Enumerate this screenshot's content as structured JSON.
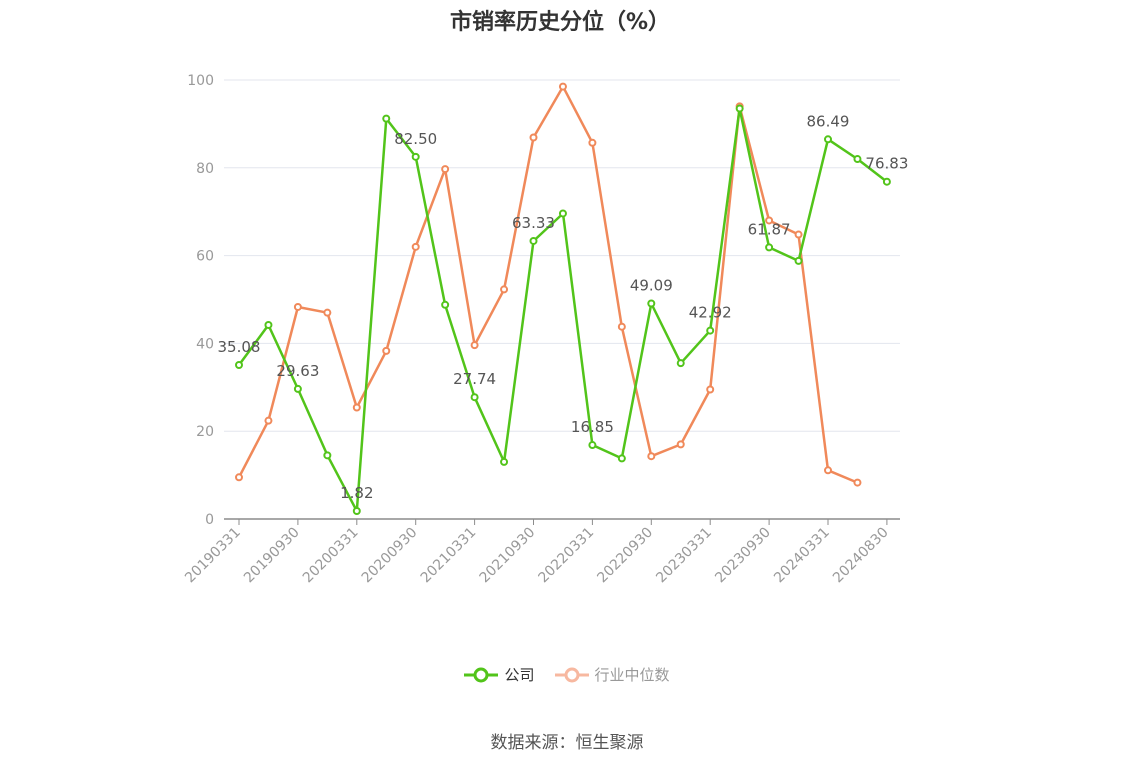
{
  "title": "市销率历史分位（%）",
  "source": "数据来源：恒生聚源",
  "legend": {
    "company": "公司",
    "industry": "行业中位数"
  },
  "colors": {
    "company": "#52c41a",
    "industry": "#f0895a",
    "industry_legend": "#f7b8a0",
    "grid": "#e3e6ee",
    "axis": "#8c8c8c",
    "tick_text": "#999999",
    "label_text": "#555555"
  },
  "chart_data": {
    "type": "line",
    "title": "市销率历史分位（%）",
    "ylim": [
      0,
      100
    ],
    "yticks": [
      0,
      20,
      40,
      60,
      80,
      100
    ],
    "grid": true,
    "legend_position": "bottom",
    "x_tick_labels": [
      "20190331",
      "20190930",
      "20200331",
      "20200930",
      "20210331",
      "20210930",
      "20220331",
      "20220930",
      "20230331",
      "20230930",
      "20240331",
      "20240830"
    ],
    "x": [
      "20190331",
      "20190630",
      "20190930",
      "20191231",
      "20200331",
      "20200630",
      "20200930",
      "20201231",
      "20210331",
      "20210630",
      "20210930",
      "20211231",
      "20220331",
      "20220630",
      "20220930",
      "20221231",
      "20230331",
      "20230630",
      "20230930",
      "20231231",
      "20240331",
      "20240630",
      "20240830"
    ],
    "series": [
      {
        "name": "公司",
        "values": [
          35.08,
          44.2,
          29.63,
          14.5,
          1.82,
          91.2,
          82.5,
          48.8,
          27.74,
          13.0,
          63.33,
          69.6,
          16.85,
          13.8,
          49.09,
          35.5,
          42.92,
          93.5,
          61.87,
          58.8,
          86.49,
          82.0,
          76.83
        ],
        "labels": {
          "0": "35.08",
          "2": "29.63",
          "4": "1.82",
          "6": "82.50",
          "8": "27.74",
          "10": "63.33",
          "12": "16.85",
          "14": "49.09",
          "16": "42.92",
          "18": "61.87",
          "20": "86.49",
          "22": "76.83"
        }
      },
      {
        "name": "行业中位数",
        "values": [
          9.5,
          22.4,
          48.3,
          47.0,
          25.4,
          38.3,
          62.0,
          79.7,
          39.6,
          52.3,
          86.9,
          98.5,
          85.7,
          43.8,
          14.3,
          17.0,
          29.5,
          94.0,
          68.0,
          64.8,
          11.1,
          8.3,
          null
        ]
      }
    ]
  }
}
